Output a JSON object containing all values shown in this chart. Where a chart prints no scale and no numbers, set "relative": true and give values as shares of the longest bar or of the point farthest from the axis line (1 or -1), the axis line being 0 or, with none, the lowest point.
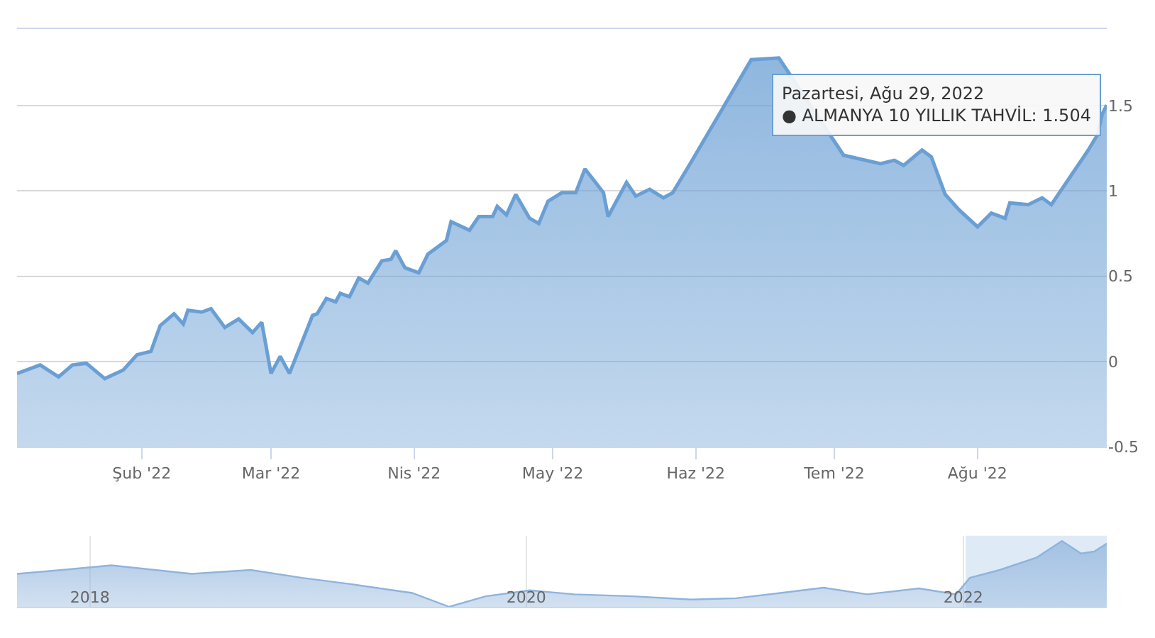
{
  "chart_data": [
    {
      "type": "area",
      "color": "#6a9fd4",
      "grid": "y",
      "annotations": [
        {
          "text": "Pazartesi, Ağu 29, 2022\n● ALMANYA 10 YILLIK TAHVİL: 1.504",
          "x": "2022-08-29",
          "y": 1.504
        }
      ],
      "x": [
        "2022-01-05",
        "2022-01-10",
        "2022-01-14",
        "2022-01-17",
        "2022-01-20",
        "2022-01-24",
        "2022-01-28",
        "2022-01-31",
        "2022-02-03",
        "2022-02-05",
        "2022-02-08",
        "2022-02-10",
        "2022-02-11",
        "2022-02-14",
        "2022-02-16",
        "2022-02-19",
        "2022-02-22",
        "2022-02-25",
        "2022-02-27",
        "2022-03-01",
        "2022-03-03",
        "2022-03-05",
        "2022-03-10",
        "2022-03-11",
        "2022-03-13",
        "2022-03-15",
        "2022-03-16",
        "2022-03-18",
        "2022-03-20",
        "2022-03-22",
        "2022-03-25",
        "2022-03-27",
        "2022-03-28",
        "2022-03-30",
        "2022-04-02",
        "2022-04-04",
        "2022-04-08",
        "2022-04-09",
        "2022-04-13",
        "2022-04-15",
        "2022-04-18",
        "2022-04-19",
        "2022-04-21",
        "2022-04-23",
        "2022-04-26",
        "2022-04-28",
        "2022-04-30",
        "2022-05-03",
        "2022-05-06",
        "2022-05-08",
        "2022-05-12",
        "2022-05-13",
        "2022-05-17",
        "2022-05-19",
        "2022-05-22",
        "2022-05-25",
        "2022-05-27",
        "2022-05-31",
        "2022-06-13",
        "2022-06-19",
        "2022-07-03",
        "2022-07-11",
        "2022-07-14",
        "2022-07-16",
        "2022-07-20",
        "2022-07-22",
        "2022-07-25",
        "2022-07-28",
        "2022-08-01",
        "2022-08-04",
        "2022-08-07",
        "2022-08-08",
        "2022-08-12",
        "2022-08-15",
        "2022-08-17",
        "2022-08-21",
        "2022-08-25",
        "2022-08-27",
        "2022-08-28",
        "2022-08-29"
      ],
      "values": [
        -0.07,
        -0.02,
        -0.09,
        -0.02,
        -0.01,
        -0.1,
        -0.05,
        0.04,
        0.06,
        0.21,
        0.28,
        0.22,
        0.3,
        0.29,
        0.31,
        0.2,
        0.25,
        0.17,
        0.23,
        -0.07,
        0.03,
        -0.07,
        0.27,
        0.28,
        0.37,
        0.35,
        0.4,
        0.38,
        0.49,
        0.46,
        0.59,
        0.6,
        0.65,
        0.55,
        0.52,
        0.63,
        0.71,
        0.82,
        0.77,
        0.85,
        0.85,
        0.91,
        0.86,
        0.98,
        0.84,
        0.81,
        0.94,
        0.99,
        0.99,
        1.13,
        0.99,
        0.85,
        1.05,
        0.97,
        1.01,
        0.96,
        0.99,
        1.17,
        1.77,
        1.78,
        1.21,
        1.16,
        1.18,
        1.15,
        1.24,
        1.2,
        0.98,
        0.89,
        0.79,
        0.87,
        0.84,
        0.93,
        0.92,
        0.96,
        0.92,
        1.08,
        1.24,
        1.33,
        1.45,
        1.504
      ],
      "xlim": [
        "2022-01-05",
        "2022-08-29"
      ],
      "ylim": [
        -0.5,
        1.95
      ],
      "xticks": [
        {
          "value": "2022-02-01",
          "label": "Şub '22"
        },
        {
          "value": "2022-03-01",
          "label": "Mar '22"
        },
        {
          "value": "2022-04-01",
          "label": "Nis '22"
        },
        {
          "value": "2022-05-01",
          "label": "May '22"
        },
        {
          "value": "2022-06-01",
          "label": "Haz '22"
        },
        {
          "value": "2022-07-01",
          "label": "Tem '22"
        },
        {
          "value": "2022-08-01",
          "label": "Ağu '22"
        }
      ],
      "yticks": [
        -0.5,
        0,
        0.5,
        1,
        1.5
      ]
    },
    {
      "type": "area",
      "relative": true,
      "color": "#8fb4dc",
      "grid": "x",
      "tick_labels": "x",
      "x": [
        "2017-09-01",
        "2017-11-15",
        "2018-02-06",
        "2018-04-20",
        "2018-06-20",
        "2018-09-27",
        "2018-12-22",
        "2019-03-17",
        "2019-06-24",
        "2019-08-25",
        "2019-10-25",
        "2020-01-07",
        "2020-03-21",
        "2020-06-27",
        "2020-10-03",
        "2020-12-17",
        "2021-03-01",
        "2021-05-12",
        "2021-07-24",
        "2021-10-19",
        "2021-12-20",
        "2022-01-12",
        "2022-03-03",
        "2022-05-04",
        "2022-06-15",
        "2022-07-17",
        "2022-08-08",
        "2022-08-29"
      ],
      "values": [
        0.5,
        0.56,
        0.63,
        0.56,
        0.5,
        0.56,
        0.44,
        0.34,
        0.21,
        0,
        0.16,
        0.25,
        0.19,
        0.16,
        0.11,
        0.13,
        0.21,
        0.29,
        0.19,
        0.28,
        0.19,
        0.44,
        0.56,
        0.75,
        1,
        0.81,
        0.84,
        0.96
      ],
      "xlim": [
        "2017-09-01",
        "2022-08-29"
      ],
      "xticks": [
        {
          "value": "2018-01-01",
          "label": "2018"
        },
        {
          "value": "2020-01-01",
          "label": "2020"
        },
        {
          "value": "2022-01-01",
          "label": "2022"
        }
      ],
      "bands": [
        {
          "axis": "x",
          "from": "2022-01-05",
          "to": "2022-08-29",
          "color": "#c9dcf2"
        }
      ]
    }
  ]
}
